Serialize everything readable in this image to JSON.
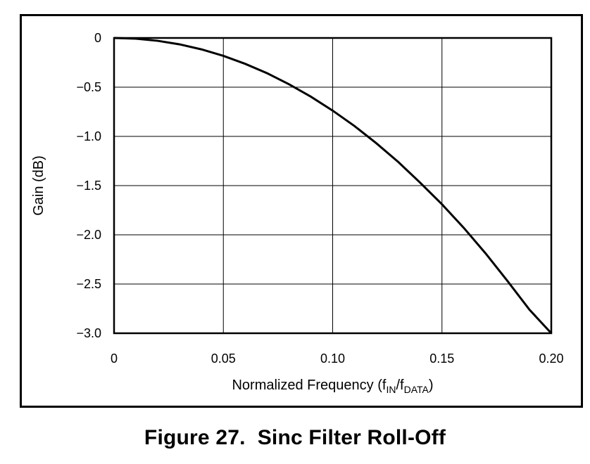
{
  "caption": {
    "number": "Figure 27.",
    "title": "Sinc Filter Roll-Off"
  },
  "chart_data": {
    "type": "line",
    "xlabel": {
      "main": "Normalized Frequency (f",
      "sub1": "IN",
      "slash": "/f",
      "sub2": "DATA",
      "close": ")"
    },
    "ylabel": "Gain (dB)",
    "xlim": [
      0,
      0.2
    ],
    "ylim": [
      -3.0,
      0
    ],
    "grid": true,
    "x_ticks": [
      0,
      0.05,
      0.1,
      0.15,
      0.2
    ],
    "x_tick_labels": [
      "0",
      "0.05",
      "0.10",
      "0.15",
      "0.20"
    ],
    "y_ticks": [
      0,
      -0.5,
      -1.0,
      -1.5,
      -2.0,
      -2.5,
      -3.0
    ],
    "y_tick_labels": [
      "0",
      "−0.5",
      "−1.0",
      "−1.5",
      "−2.0",
      "−2.5",
      "−3.0"
    ],
    "series": [
      {
        "x": [
          0,
          0.01,
          0.02,
          0.03,
          0.04,
          0.05,
          0.06,
          0.07,
          0.08,
          0.09,
          0.1,
          0.11,
          0.12,
          0.13,
          0.14,
          0.15,
          0.16,
          0.17,
          0.18,
          0.19,
          0.2
        ],
        "y": [
          0,
          -0.007,
          -0.029,
          -0.065,
          -0.116,
          -0.182,
          -0.263,
          -0.358,
          -0.47,
          -0.596,
          -0.738,
          -0.895,
          -1.07,
          -1.26,
          -1.47,
          -1.69,
          -1.93,
          -2.19,
          -2.47,
          -2.76,
          -3.07
        ]
      }
    ]
  }
}
